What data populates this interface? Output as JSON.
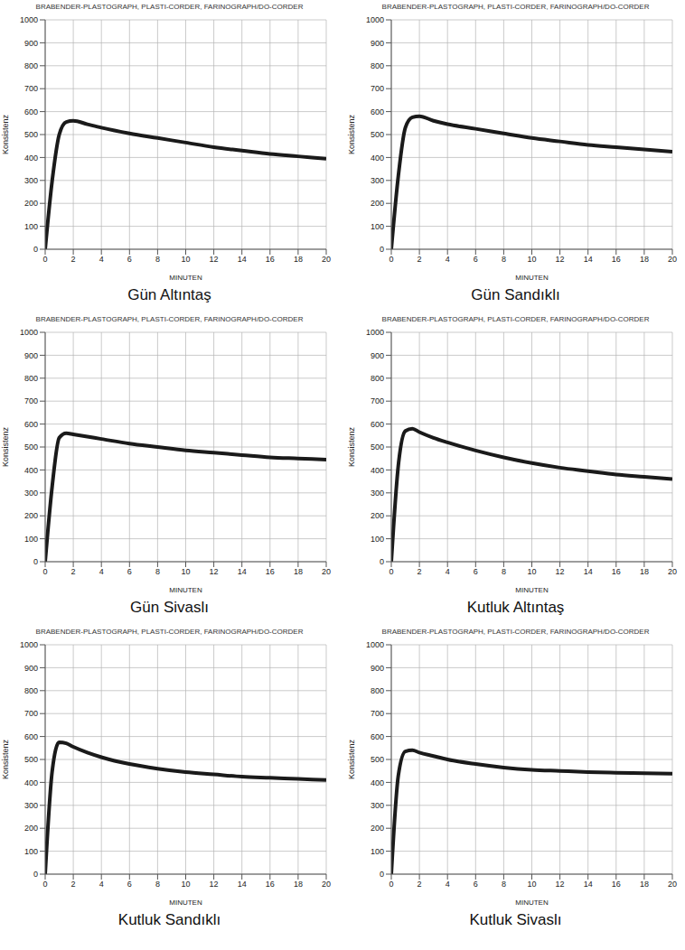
{
  "chart_data": [
    {
      "type": "line",
      "title": "Gün Altıntaş",
      "subtitle": "BRABENDER-PLASTOGRAPH, PLASTI-CORDER, FARINOGRAPH/DO-CORDER",
      "x_label": "MINUTEN",
      "y_label": "Konsistenz",
      "x": [
        0,
        0.5,
        1,
        1.5,
        2,
        3,
        4,
        6,
        8,
        10,
        12,
        14,
        16,
        18,
        20
      ],
      "values": [
        0,
        300,
        500,
        555,
        560,
        545,
        530,
        505,
        485,
        465,
        445,
        430,
        415,
        405,
        395
      ],
      "color": "#1a1a1a",
      "xlim": [
        0,
        20
      ],
      "xticks": [
        0,
        2,
        4,
        6,
        8,
        10,
        12,
        14,
        16,
        18,
        20
      ],
      "ylim": [
        0,
        1000
      ],
      "yticks": [
        0,
        100,
        200,
        300,
        400,
        500,
        600,
        700,
        800,
        900,
        1000
      ],
      "grid": true
    },
    {
      "type": "line",
      "title": "Gün Sandıklı",
      "subtitle": "BRABENDER-PLASTOGRAPH, PLASTI-CORDER, FARINOGRAPH/DO-CORDER",
      "x_label": "MINUTEN",
      "y_label": "Konsistenz",
      "x": [
        0,
        0.5,
        1,
        1.5,
        2,
        3,
        4,
        6,
        8,
        10,
        12,
        14,
        16,
        18,
        20
      ],
      "values": [
        0,
        320,
        530,
        575,
        580,
        560,
        545,
        525,
        505,
        485,
        470,
        455,
        445,
        435,
        425
      ],
      "color": "#1a1a1a",
      "xlim": [
        0,
        20
      ],
      "xticks": [
        0,
        2,
        4,
        6,
        8,
        10,
        12,
        14,
        16,
        18,
        20
      ],
      "ylim": [
        0,
        1000
      ],
      "yticks": [
        0,
        100,
        200,
        300,
        400,
        500,
        600,
        700,
        800,
        900,
        1000
      ],
      "grid": true
    },
    {
      "type": "line",
      "title": "Gün Sivaslı",
      "subtitle": "BRABENDER-PLASTOGRAPH, PLASTI-CORDER, FARINOGRAPH/DO-CORDER",
      "x_label": "MINUTEN",
      "y_label": "Konsistenz",
      "x": [
        0,
        0.5,
        1,
        1.5,
        2,
        3,
        4,
        6,
        8,
        10,
        12,
        14,
        16,
        18,
        20
      ],
      "values": [
        0,
        330,
        540,
        560,
        555,
        545,
        535,
        515,
        500,
        485,
        475,
        465,
        455,
        450,
        445
      ],
      "color": "#1a1a1a",
      "xlim": [
        0,
        20
      ],
      "xticks": [
        0,
        2,
        4,
        6,
        8,
        10,
        12,
        14,
        16,
        18,
        20
      ],
      "ylim": [
        0,
        1000
      ],
      "yticks": [
        0,
        100,
        200,
        300,
        400,
        500,
        600,
        700,
        800,
        900,
        1000
      ],
      "grid": true
    },
    {
      "type": "line",
      "title": "Kutluk Altıntaş",
      "subtitle": "BRABENDER-PLASTOGRAPH, PLASTI-CORDER, FARINOGRAPH/DO-CORDER",
      "x_label": "MINUTEN",
      "y_label": "Konsistenz",
      "x": [
        0,
        0.5,
        1,
        1.5,
        2,
        3,
        4,
        6,
        8,
        10,
        12,
        14,
        16,
        18,
        20
      ],
      "values": [
        0,
        420,
        570,
        580,
        565,
        540,
        520,
        485,
        455,
        430,
        410,
        395,
        380,
        370,
        360
      ],
      "color": "#1a1a1a",
      "xlim": [
        0,
        20
      ],
      "xticks": [
        0,
        2,
        4,
        6,
        8,
        10,
        12,
        14,
        16,
        18,
        20
      ],
      "ylim": [
        0,
        1000
      ],
      "yticks": [
        0,
        100,
        200,
        300,
        400,
        500,
        600,
        700,
        800,
        900,
        1000
      ],
      "grid": true
    },
    {
      "type": "line",
      "title": "Kutluk Sandıklı",
      "subtitle": "BRABENDER-PLASTOGRAPH, PLASTI-CORDER, FARINOGRAPH/DO-CORDER",
      "x_label": "MINUTEN",
      "y_label": "Konsistenz",
      "x": [
        0,
        0.5,
        1,
        1.5,
        2,
        3,
        4,
        6,
        8,
        10,
        12,
        14,
        16,
        18,
        20
      ],
      "values": [
        0,
        450,
        575,
        570,
        555,
        530,
        510,
        480,
        460,
        445,
        435,
        425,
        420,
        415,
        410
      ],
      "color": "#1a1a1a",
      "xlim": [
        0,
        20
      ],
      "xticks": [
        0,
        2,
        4,
        6,
        8,
        10,
        12,
        14,
        16,
        18,
        20
      ],
      "ylim": [
        0,
        1000
      ],
      "yticks": [
        0,
        100,
        200,
        300,
        400,
        500,
        600,
        700,
        800,
        900,
        1000
      ],
      "grid": true
    },
    {
      "type": "line",
      "title": "Kutluk Sivaslı",
      "subtitle": "BRABENDER-PLASTOGRAPH, PLASTI-CORDER, FARINOGRAPH/DO-CORDER",
      "x_label": "MINUTEN",
      "y_label": "Konsistenz",
      "x": [
        0,
        0.5,
        1,
        1.5,
        2,
        3,
        4,
        6,
        8,
        10,
        12,
        14,
        16,
        18,
        20
      ],
      "values": [
        0,
        430,
        535,
        540,
        530,
        515,
        500,
        480,
        465,
        455,
        450,
        445,
        442,
        440,
        438
      ],
      "color": "#1a1a1a",
      "xlim": [
        0,
        20
      ],
      "xticks": [
        0,
        2,
        4,
        6,
        8,
        10,
        12,
        14,
        16,
        18,
        20
      ],
      "ylim": [
        0,
        1000
      ],
      "yticks": [
        0,
        100,
        200,
        300,
        400,
        500,
        600,
        700,
        800,
        900,
        1000
      ],
      "grid": true
    }
  ]
}
